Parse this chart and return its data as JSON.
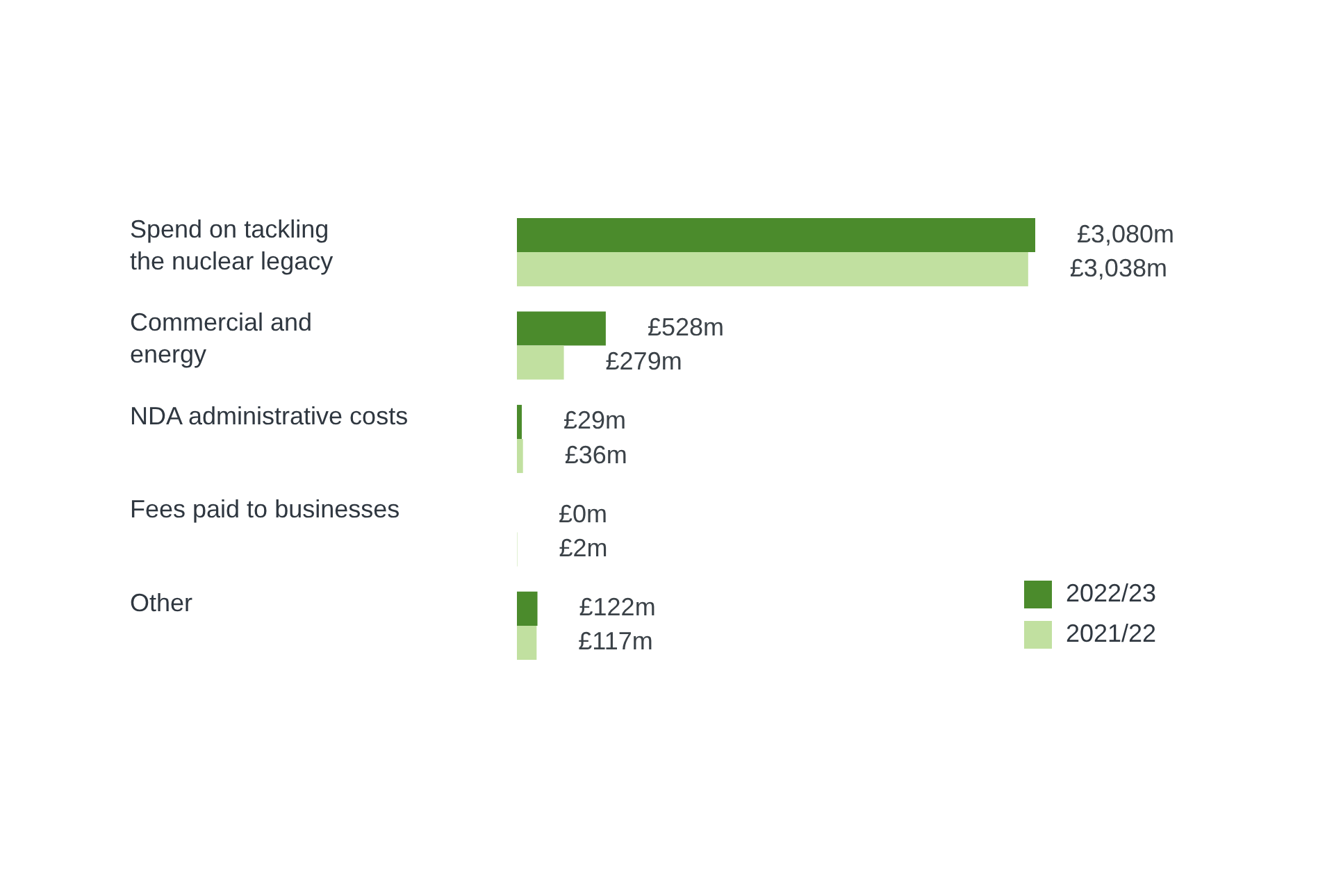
{
  "chart_data": {
    "type": "bar",
    "orientation": "horizontal",
    "categories": [
      "Spend on tackling\nthe nuclear legacy",
      "Commercial and\nenergy",
      "NDA administrative costs",
      "Fees paid to businesses",
      "Other"
    ],
    "series": [
      {
        "name": "2022/23",
        "color": "#4b8b2c",
        "values": [
          3080,
          528,
          29,
          0,
          122
        ],
        "value_labels": [
          "£3,080m",
          "£528m",
          "£29m",
          "£0m",
          "£122m"
        ]
      },
      {
        "name": "2021/22",
        "color": "#c1e0a0",
        "values": [
          3038,
          279,
          36,
          2,
          117
        ],
        "value_labels": [
          "£3,038m",
          "£279m",
          "£36m",
          "£2m",
          "£117m"
        ]
      }
    ],
    "legend": "bottom right"
  }
}
